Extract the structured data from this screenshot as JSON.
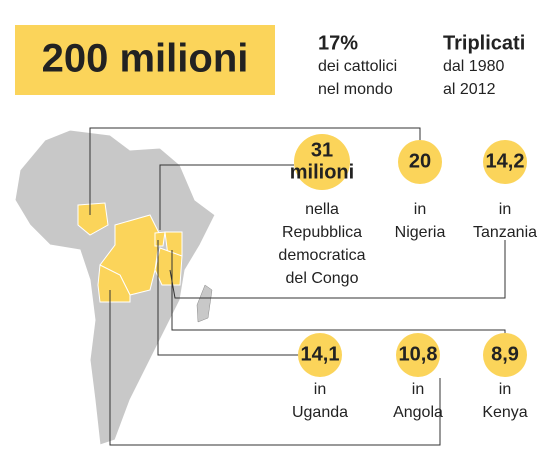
{
  "headline": "200 milioni",
  "stats": [
    {
      "value": "17%",
      "lines": [
        "dei cattolici",
        "nel mondo"
      ]
    },
    {
      "value": "Triplicati",
      "lines": [
        "dal 1980",
        "al 2012"
      ]
    }
  ],
  "countries": [
    {
      "value": "31",
      "unit": "milioni",
      "lines": [
        "nella",
        "Repubblica",
        "democratica",
        "del Congo"
      ]
    },
    {
      "value": "20",
      "lines": [
        "in",
        "Nigeria"
      ]
    },
    {
      "value": "14,2",
      "lines": [
        "in",
        "Tanzania"
      ]
    },
    {
      "value": "14,1",
      "lines": [
        "in",
        "Uganda"
      ]
    },
    {
      "value": "10,8",
      "lines": [
        "in",
        "Angola"
      ]
    },
    {
      "value": "8,9",
      "lines": [
        "in",
        "Kenya"
      ]
    }
  ]
}
